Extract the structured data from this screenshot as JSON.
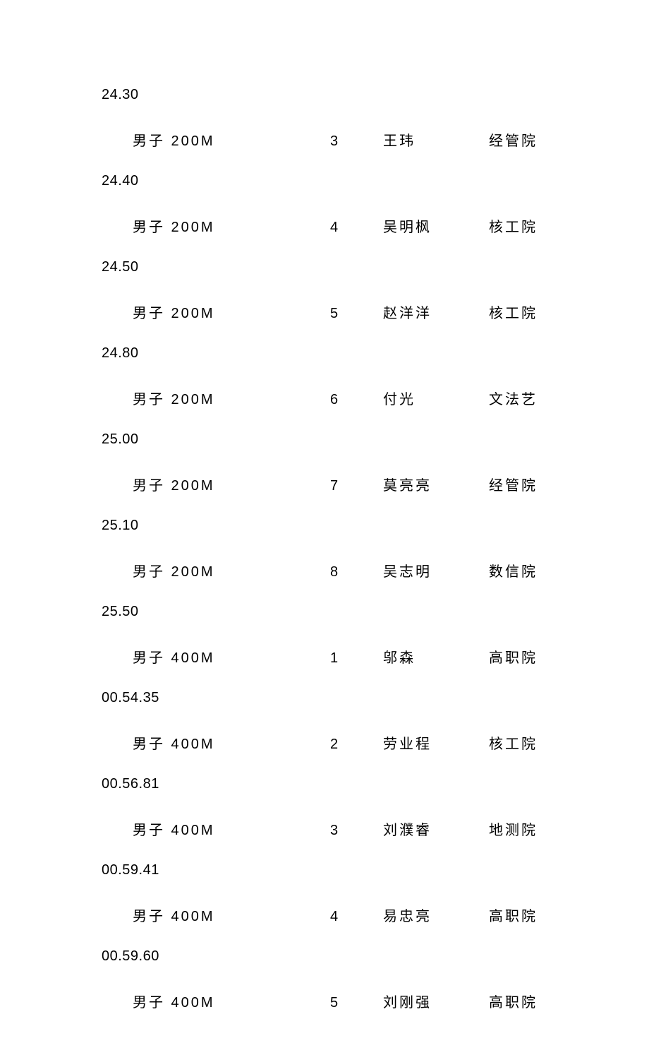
{
  "leading_time": "24.30",
  "rows": [
    {
      "event": "男子 200M",
      "rank": "3",
      "name": "王玮",
      "dept": "经管院",
      "time": "24.40"
    },
    {
      "event": "男子 200M",
      "rank": "4",
      "name": "吴明枫",
      "dept": "核工院",
      "time": "24.50"
    },
    {
      "event": "男子 200M",
      "rank": "5",
      "name": "赵洋洋",
      "dept": "核工院",
      "time": "24.80"
    },
    {
      "event": "男子 200M",
      "rank": "6",
      "name": "付光",
      "dept": "文法艺",
      "time": "25.00"
    },
    {
      "event": "男子 200M",
      "rank": "7",
      "name": "莫亮亮",
      "dept": "经管院",
      "time": "25.10"
    },
    {
      "event": "男子 200M",
      "rank": "8",
      "name": "吴志明",
      "dept": "数信院",
      "time": "25.50"
    },
    {
      "event": "男子 400M",
      "rank": "1",
      "name": "邬森",
      "dept": "高职院",
      "time": "00.54.35"
    },
    {
      "event": "男子 400M",
      "rank": "2",
      "name": "劳业程",
      "dept": "核工院",
      "time": "00.56.81"
    },
    {
      "event": "男子 400M",
      "rank": "3",
      "name": "刘濮睿",
      "dept": "地测院",
      "time": "00.59.41"
    },
    {
      "event": "男子 400M",
      "rank": "4",
      "name": "易忠亮",
      "dept": "高职院",
      "time": "00.59.60"
    },
    {
      "event": "男子 400M",
      "rank": "5",
      "name": "刘刚强",
      "dept": "高职院",
      "time": ""
    }
  ]
}
